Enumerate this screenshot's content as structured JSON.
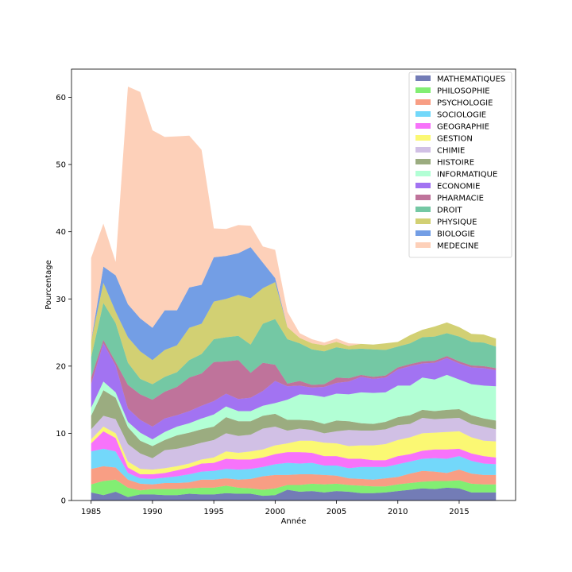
{
  "chart_data": {
    "type": "area",
    "stacked": true,
    "title": "",
    "xlabel": "Année",
    "ylabel": "Pourcentage",
    "xlim": [
      1983.4,
      2019.6
    ],
    "ylim": [
      0,
      64.2
    ],
    "x_ticks": [
      1985,
      1990,
      1995,
      2000,
      2005,
      2010,
      2015
    ],
    "y_ticks": [
      0,
      10,
      20,
      30,
      40,
      50,
      60
    ],
    "grid": false,
    "legend_position": "top-right",
    "alpha": 0.55,
    "x": [
      1985,
      1986,
      1987,
      1988,
      1989,
      1990,
      1991,
      1992,
      1993,
      1994,
      1995,
      1996,
      1997,
      1998,
      1999,
      2000,
      2001,
      2002,
      2003,
      2004,
      2005,
      2006,
      2007,
      2008,
      2009,
      2010,
      2011,
      2012,
      2013,
      2014,
      2015,
      2016,
      2017,
      2018
    ],
    "series": [
      {
        "name": "MATHEMATIQUES",
        "color": "#00107a",
        "values": [
          1.2,
          0.8,
          1.3,
          0.5,
          0.9,
          0.9,
          0.8,
          0.8,
          1.0,
          0.9,
          0.9,
          1.1,
          1.0,
          1.0,
          0.7,
          0.8,
          1.6,
          1.3,
          1.4,
          1.2,
          1.4,
          1.3,
          1.1,
          1.1,
          1.2,
          1.4,
          1.6,
          1.8,
          1.7,
          1.9,
          1.8,
          1.2,
          1.2,
          1.2
        ]
      },
      {
        "name": "PHILOSOPHIE",
        "color": "#1be000",
        "values": [
          1.2,
          2.1,
          1.8,
          1.4,
          0.6,
          0.8,
          0.9,
          0.9,
          0.8,
          1.0,
          1.0,
          1.1,
          0.9,
          0.8,
          0.9,
          1.0,
          0.7,
          1.0,
          1.1,
          1.2,
          1.1,
          1.0,
          1.1,
          1.0,
          0.9,
          1.0,
          1.0,
          1.0,
          1.2,
          1.0,
          1.2,
          1.3,
          1.2,
          1.2
        ]
      },
      {
        "name": "PSYCHOLOGIE",
        "color": "#f24f1f",
        "values": [
          2.3,
          2.2,
          1.8,
          1.2,
          1.0,
          0.7,
          0.9,
          0.9,
          0.9,
          1.2,
          1.2,
          1.1,
          1.2,
          1.4,
          2.0,
          2.0,
          1.5,
          1.6,
          1.4,
          1.4,
          1.2,
          1.0,
          1.0,
          1.0,
          1.2,
          1.1,
          1.4,
          1.6,
          1.4,
          1.2,
          1.6,
          1.5,
          1.4,
          1.4
        ]
      },
      {
        "name": "SOCIOLOGIE",
        "color": "#00b8f5",
        "values": [
          2.6,
          2.6,
          2.4,
          1.0,
          0.8,
          0.8,
          0.8,
          1.0,
          1.2,
          1.2,
          1.3,
          1.4,
          1.5,
          1.5,
          1.4,
          1.6,
          1.8,
          1.6,
          1.7,
          1.4,
          1.5,
          1.5,
          1.8,
          1.9,
          1.7,
          1.9,
          1.8,
          1.8,
          2.0,
          2.1,
          2.0,
          1.9,
          1.7,
          1.6
        ]
      },
      {
        "name": "GEOGRAPHIE",
        "color": "#f100f6",
        "values": [
          1.2,
          2.6,
          2.0,
          0.8,
          0.6,
          0.7,
          0.7,
          0.9,
          1.0,
          1.2,
          1.2,
          1.5,
          1.5,
          1.4,
          1.4,
          1.5,
          1.6,
          1.7,
          1.5,
          1.4,
          1.4,
          1.4,
          1.2,
          1.0,
          1.0,
          1.2,
          1.1,
          1.2,
          1.3,
          1.4,
          1.1,
          1.1,
          1.1,
          1.0
        ]
      },
      {
        "name": "GESTION",
        "color": "#f8f300",
        "values": [
          0.6,
          0.7,
          0.7,
          0.9,
          0.8,
          0.7,
          0.7,
          0.6,
          0.6,
          0.6,
          0.8,
          1.1,
          1.0,
          1.2,
          1.2,
          1.3,
          1.3,
          1.7,
          1.8,
          2.0,
          1.9,
          1.9,
          2.0,
          2.2,
          2.4,
          2.4,
          2.5,
          2.6,
          2.5,
          2.6,
          2.6,
          2.4,
          2.3,
          2.4
        ]
      },
      {
        "name": "CHIMIE",
        "color": "#ab8dd0",
        "values": [
          1.5,
          1.6,
          2.1,
          2.6,
          2.3,
          1.7,
          2.7,
          2.6,
          2.6,
          2.5,
          2.6,
          2.7,
          2.5,
          2.5,
          3.1,
          2.8,
          1.9,
          1.8,
          1.6,
          1.4,
          1.8,
          2.4,
          2.2,
          2.2,
          2.2,
          2.2,
          2.0,
          2.3,
          2.0,
          2.0,
          2.0,
          2.0,
          2.1,
          1.8
        ]
      },
      {
        "name": "HISTOIRE",
        "color": "#496817",
        "values": [
          2.0,
          3.8,
          3.2,
          2.5,
          1.9,
          1.8,
          1.5,
          2.0,
          2.0,
          2.0,
          2.0,
          2.4,
          2.2,
          2.0,
          1.9,
          1.9,
          1.6,
          1.3,
          1.4,
          1.4,
          1.6,
          1.3,
          1.1,
          1.0,
          1.1,
          1.2,
          1.3,
          1.2,
          1.2,
          1.3,
          1.3,
          1.3,
          1.2,
          1.3
        ]
      },
      {
        "name": "INFORMATIQUE",
        "color": "#72ffb2",
        "values": [
          1.2,
          1.3,
          0.8,
          0.8,
          1.2,
          1.0,
          1.2,
          1.3,
          1.4,
          1.6,
          1.8,
          1.6,
          1.5,
          1.5,
          1.5,
          1.6,
          3.0,
          3.8,
          3.8,
          4.0,
          4.0,
          4.0,
          4.6,
          4.6,
          4.4,
          4.7,
          4.4,
          4.8,
          4.7,
          5.2,
          4.4,
          4.6,
          4.9,
          5.1
        ]
      },
      {
        "name": "ECONOMIE",
        "color": "#5500e8",
        "values": [
          3.5,
          5.7,
          4.0,
          2.0,
          1.9,
          1.9,
          2.0,
          1.7,
          1.8,
          1.9,
          2.0,
          1.9,
          1.8,
          2.0,
          2.2,
          3.3,
          2.0,
          1.3,
          1.1,
          1.5,
          1.6,
          1.9,
          2.3,
          2.1,
          2.2,
          2.4,
          2.9,
          2.1,
          2.5,
          2.5,
          2.4,
          2.5,
          2.6,
          2.4
        ]
      },
      {
        "name": "PHARMACIE",
        "color": "#8b0048",
        "values": [
          1.0,
          0.5,
          0.5,
          3.5,
          3.8,
          4.0,
          4.0,
          4.2,
          5.0,
          4.8,
          5.8,
          4.8,
          5.8,
          3.7,
          4.2,
          2.4,
          0.4,
          0.7,
          0.4,
          0.4,
          0.8,
          0.5,
          0.3,
          0.3,
          0.3,
          0.3,
          0.3,
          0.3,
          0.3,
          0.3,
          0.3,
          0.3,
          0.3,
          0.3
        ]
      },
      {
        "name": "DROIT",
        "color": "#019b5a",
        "values": [
          3.0,
          5.5,
          5.8,
          3.3,
          2.3,
          2.3,
          2.2,
          2.2,
          2.6,
          2.9,
          3.4,
          3.6,
          3.6,
          4.2,
          5.8,
          6.8,
          6.6,
          5.6,
          5.3,
          4.9,
          4.5,
          4.3,
          3.9,
          4.1,
          3.8,
          3.1,
          3.1,
          3.6,
          3.6,
          3.4,
          3.7,
          3.5,
          3.5,
          3.2
        ]
      },
      {
        "name": "PHYSIQUE",
        "color": "#adaa00",
        "values": [
          2.4,
          3.0,
          1.7,
          3.8,
          4.1,
          3.6,
          4.0,
          4.0,
          4.8,
          4.5,
          5.6,
          5.7,
          6.1,
          6.9,
          5.3,
          5.5,
          1.8,
          0.8,
          0.9,
          0.9,
          0.8,
          0.5,
          0.7,
          0.7,
          1.0,
          0.7,
          1.2,
          1.1,
          1.5,
          1.6,
          1.4,
          1.2,
          1.2,
          1.2
        ]
      },
      {
        "name": "BIOLOGIE",
        "color": "#004ed0",
        "values": [
          0.0,
          2.4,
          5.4,
          4.9,
          4.9,
          4.8,
          5.9,
          5.2,
          6.0,
          5.8,
          6.6,
          6.4,
          6.2,
          7.6,
          3.8,
          0.6,
          0.0,
          0.0,
          0.0,
          0.0,
          0.0,
          0.0,
          0.0,
          0.0,
          0.0,
          0.0,
          0.0,
          0.0,
          0.0,
          0.0,
          0.0,
          0.0,
          0.0,
          0.0
        ]
      },
      {
        "name": "MEDECINE",
        "color": "#fbaa80",
        "values": [
          12.4,
          6.4,
          2.0,
          32.4,
          33.7,
          29.4,
          25.8,
          25.9,
          22.6,
          20.1,
          4.3,
          4.0,
          4.2,
          3.2,
          2.4,
          4.2,
          2.3,
          0.7,
          0.6,
          0.4,
          0.5,
          0.4,
          0.0,
          0.0,
          0.0,
          0.0,
          0.0,
          0.0,
          0.0,
          0.0,
          0.0,
          0.0,
          0.0,
          0.0
        ]
      }
    ]
  }
}
